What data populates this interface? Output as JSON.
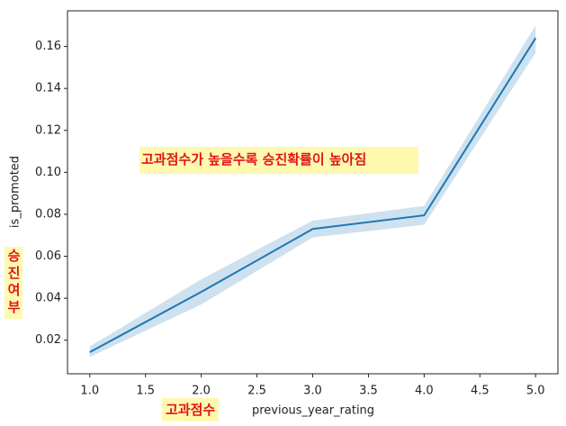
{
  "chart_data": {
    "type": "line",
    "x_label": "previous_year_rating",
    "y_label": "is_promoted",
    "x": [
      1,
      2,
      3,
      4,
      5
    ],
    "series": [
      {
        "name": "is_promoted",
        "color": "#1f77b4",
        "values": [
          0.0143,
          0.043,
          0.073,
          0.0795,
          0.164
        ]
      }
    ],
    "ci": {
      "lower": [
        0.012,
        0.037,
        0.069,
        0.075,
        0.157
      ],
      "upper": [
        0.017,
        0.049,
        0.077,
        0.084,
        0.17
      ],
      "color": "#1f77b4"
    },
    "xlim": [
      0.8,
      5.2
    ],
    "ylim": [
      0.004,
      0.177
    ],
    "xticks": [
      {
        "value": 1,
        "label": "1.0"
      },
      1.5,
      {
        "value": 2,
        "label": "2.0"
      },
      2.5,
      {
        "value": 3,
        "label": "3.0"
      },
      3.5,
      {
        "value": 4,
        "label": "4.0"
      },
      4.5,
      {
        "value": 5,
        "label": "5.0"
      }
    ],
    "yticks": [
      0.02,
      0.04,
      0.06,
      0.08,
      {
        "value": 0.1,
        "label": "0.10"
      },
      0.12,
      0.14,
      0.16
    ],
    "annotations": {
      "title_note": "고과점수가 높을수록 승진확률이 높아짐",
      "y_note": "승진여부",
      "x_note": "고과점수"
    }
  }
}
